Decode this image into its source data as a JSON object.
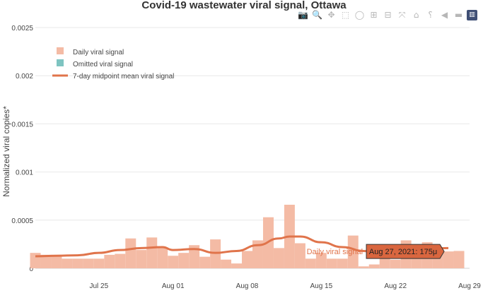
{
  "modebar": {
    "icons": [
      "camera-icon",
      "zoom-icon",
      "pan-icon",
      "box-select-icon",
      "lasso-select-icon",
      "zoom-in-icon",
      "zoom-out-icon",
      "autoscale-icon",
      "reset-axes-icon",
      "spike-lines-icon",
      "hover-closest-icon",
      "hover-compare-icon",
      "plotly-logo-icon"
    ],
    "glyphs": [
      "📷",
      "🔍",
      "✥",
      "⬚",
      "◯",
      "⊞",
      "⊟",
      "⤧",
      "⌂",
      "⸮",
      "◀",
      "▬",
      "▥"
    ]
  },
  "colors": {
    "bar": "#f4bba5",
    "omitted": "#7ec4c1",
    "line": "#e0744b",
    "grid": "#e8e8e8",
    "text": "#444444",
    "hover_box": "#d9663f"
  },
  "chart_data": {
    "type": "bar",
    "title": "Covid-19 wastewater viral signal, Ottawa",
    "ylabel": "Normalized viral copies*",
    "xlabel": "",
    "ylim": [
      0,
      0.0025
    ],
    "yticks": [
      0,
      0.0005,
      0.001,
      0.0015,
      0.002,
      0.0025
    ],
    "ytick_labels": [
      "0",
      "0.0005",
      "0.001",
      "0.0015",
      "0.002",
      "0.0025"
    ],
    "xlim": [
      "2021-07-19",
      "2021-08-29"
    ],
    "xticks": [
      "2021-07-25",
      "2021-08-01",
      "2021-08-08",
      "2021-08-15",
      "2021-08-22",
      "2021-08-29"
    ],
    "xtick_labels": [
      "Jul 25",
      "Aug 01",
      "Aug 08",
      "Aug 15",
      "Aug 22",
      "Aug 29"
    ],
    "grid": true,
    "legend": {
      "placement": "top-left",
      "items": [
        {
          "label": "Daily viral signal",
          "kind": "box",
          "color": "#f4bba5"
        },
        {
          "label": "Omitted viral signal",
          "kind": "box",
          "color": "#7ec4c1"
        },
        {
          "label": "7-day midpoint mean viral signal",
          "kind": "line",
          "color": "#e0744b"
        }
      ]
    },
    "series": [
      {
        "name": "Daily viral signal",
        "type": "bar",
        "x": [
          "2021-07-19",
          "2021-07-20",
          "2021-07-21",
          "2021-07-22",
          "2021-07-23",
          "2021-07-24",
          "2021-07-25",
          "2021-07-26",
          "2021-07-27",
          "2021-07-28",
          "2021-07-29",
          "2021-07-30",
          "2021-07-31",
          "2021-08-01",
          "2021-08-02",
          "2021-08-03",
          "2021-08-04",
          "2021-08-05",
          "2021-08-06",
          "2021-08-07",
          "2021-08-08",
          "2021-08-09",
          "2021-08-10",
          "2021-08-11",
          "2021-08-12",
          "2021-08-13",
          "2021-08-14",
          "2021-08-15",
          "2021-08-16",
          "2021-08-17",
          "2021-08-18",
          "2021-08-19",
          "2021-08-20",
          "2021-08-21",
          "2021-08-22",
          "2021-08-23",
          "2021-08-24",
          "2021-08-25",
          "2021-08-26",
          "2021-08-27",
          "2021-08-28"
        ],
        "values": [
          0.00016,
          0.00014,
          0.00014,
          0.0001,
          0.0001,
          0.0001,
          0.0001,
          0.00014,
          0.00015,
          0.00031,
          0.00019,
          0.00032,
          0.00021,
          0.00013,
          0.00016,
          0.00024,
          0.00012,
          0.0003,
          9e-05,
          5e-05,
          0.00018,
          0.00029,
          0.00053,
          0.00021,
          0.00066,
          0.00026,
          0.0001,
          0.00016,
          0.0001,
          0.0001,
          0.00034,
          2e-05,
          4e-05,
          0.00019,
          9e-05,
          0.00029,
          0.00015,
          0.00027,
          0.00018,
          0.000175,
          0.00018
        ]
      },
      {
        "name": "7-day midpoint mean viral signal",
        "type": "line",
        "x": [
          "2021-07-19",
          "2021-07-21",
          "2021-07-23",
          "2021-07-25",
          "2021-07-27",
          "2021-07-29",
          "2021-07-31",
          "2021-08-01",
          "2021-08-03",
          "2021-08-05",
          "2021-08-07",
          "2021-08-09",
          "2021-08-11",
          "2021-08-12",
          "2021-08-13",
          "2021-08-15",
          "2021-08-17",
          "2021-08-19",
          "2021-08-21",
          "2021-08-23",
          "2021-08-25",
          "2021-08-27"
        ],
        "values": [
          0.000125,
          0.00013,
          0.000135,
          0.00016,
          0.00019,
          0.00021,
          0.00022,
          0.00019,
          0.0002,
          0.00016,
          0.00018,
          0.00024,
          0.00031,
          0.00033,
          0.00033,
          0.00027,
          0.00022,
          0.00018,
          0.00014,
          0.00016,
          0.0002,
          0.00021
        ]
      }
    ],
    "hover": {
      "series_label": "Daily viral signal",
      "text": "Aug 27, 2021: 175μ",
      "x": "2021-08-27",
      "y": 0.000175
    }
  }
}
